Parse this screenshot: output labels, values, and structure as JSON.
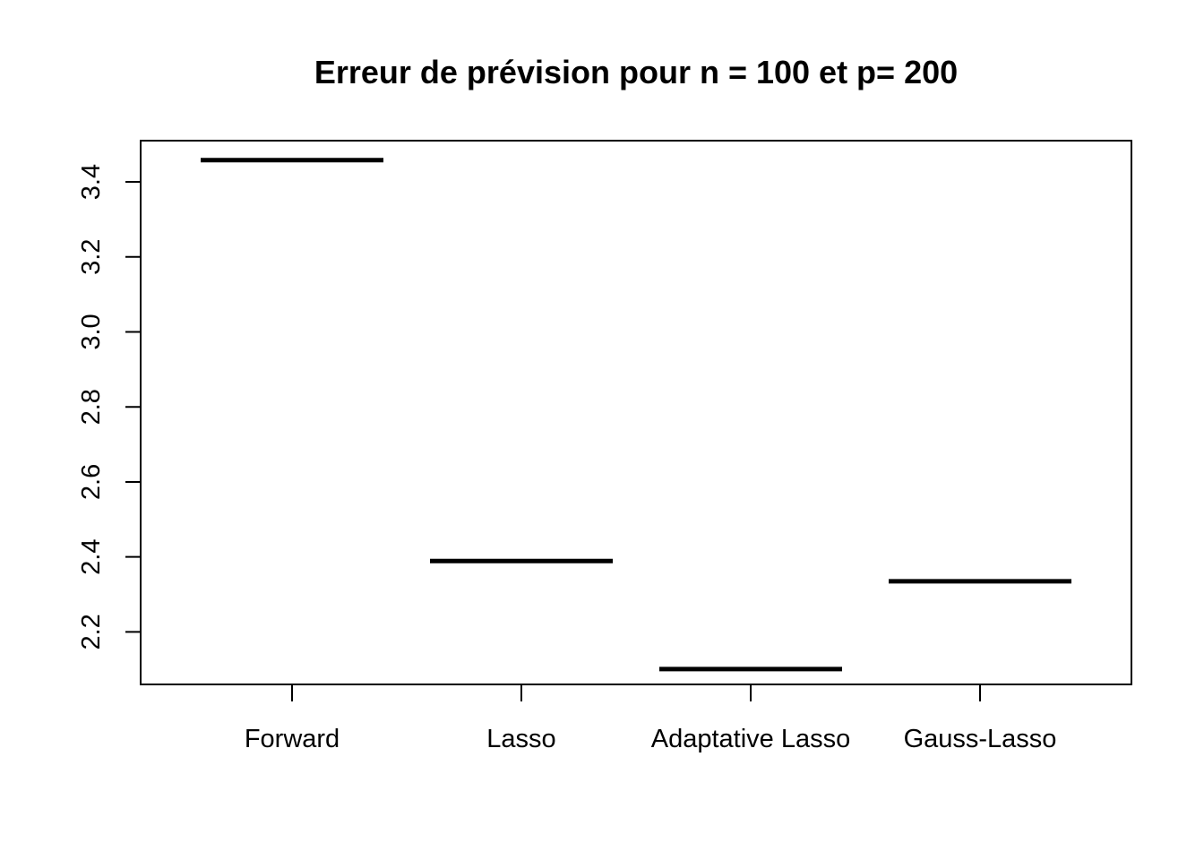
{
  "chart_data": {
    "type": "line",
    "title": "Erreur de prévision pour n = 100 et p= 200",
    "xlabel": "",
    "ylabel": "",
    "categories": [
      "Forward",
      "Lasso",
      "Adaptative Lasso",
      "Gauss-Lasso"
    ],
    "values": [
      3.458,
      2.389,
      2.101,
      2.335
    ],
    "yticks": [
      "2.2",
      "2.4",
      "2.6",
      "2.8",
      "3.0",
      "3.2",
      "3.4"
    ],
    "ylim": [
      2.06,
      3.51
    ],
    "grid": false,
    "legend": "none",
    "colors": {
      "line": "#000000",
      "axis": "#000000",
      "background": "#ffffff"
    }
  }
}
